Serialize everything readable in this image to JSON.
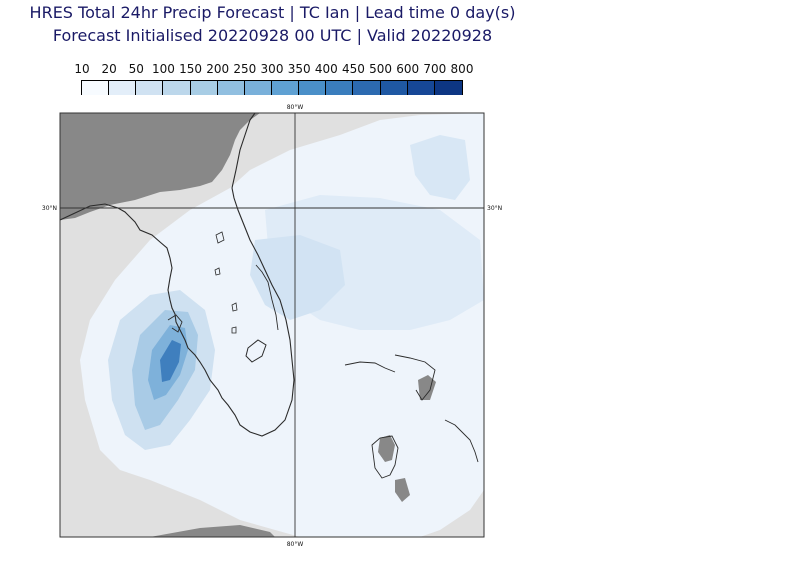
{
  "title": {
    "line1": "HRES Total 24hr Precip Forecast | TC Ian | Lead time 0 day(s)",
    "line2": "Forecast Initialised 20220928 00 UTC | Valid 20220928"
  },
  "colorbar": {
    "labels": [
      "10",
      "20",
      "50",
      "100",
      "150",
      "200",
      "250",
      "300",
      "350",
      "400",
      "450",
      "500",
      "600",
      "700",
      "800"
    ],
    "colors": [
      "#f7fbff",
      "#e3eef9",
      "#d0e2f2",
      "#bcd7eb",
      "#a8cde5",
      "#91bfe0",
      "#79b0da",
      "#5fa1d3",
      "#4a8fc8",
      "#3a7dbd",
      "#2c6ab0",
      "#1f58a3",
      "#164796",
      "#0d3683"
    ]
  },
  "map": {
    "gridlines": {
      "lon_label": "80°W",
      "lat_label": "30°N"
    },
    "colors": {
      "ocean_masked": "#e0e0e0",
      "land_masked": "#888888",
      "coast": "#2b2b2b"
    }
  }
}
